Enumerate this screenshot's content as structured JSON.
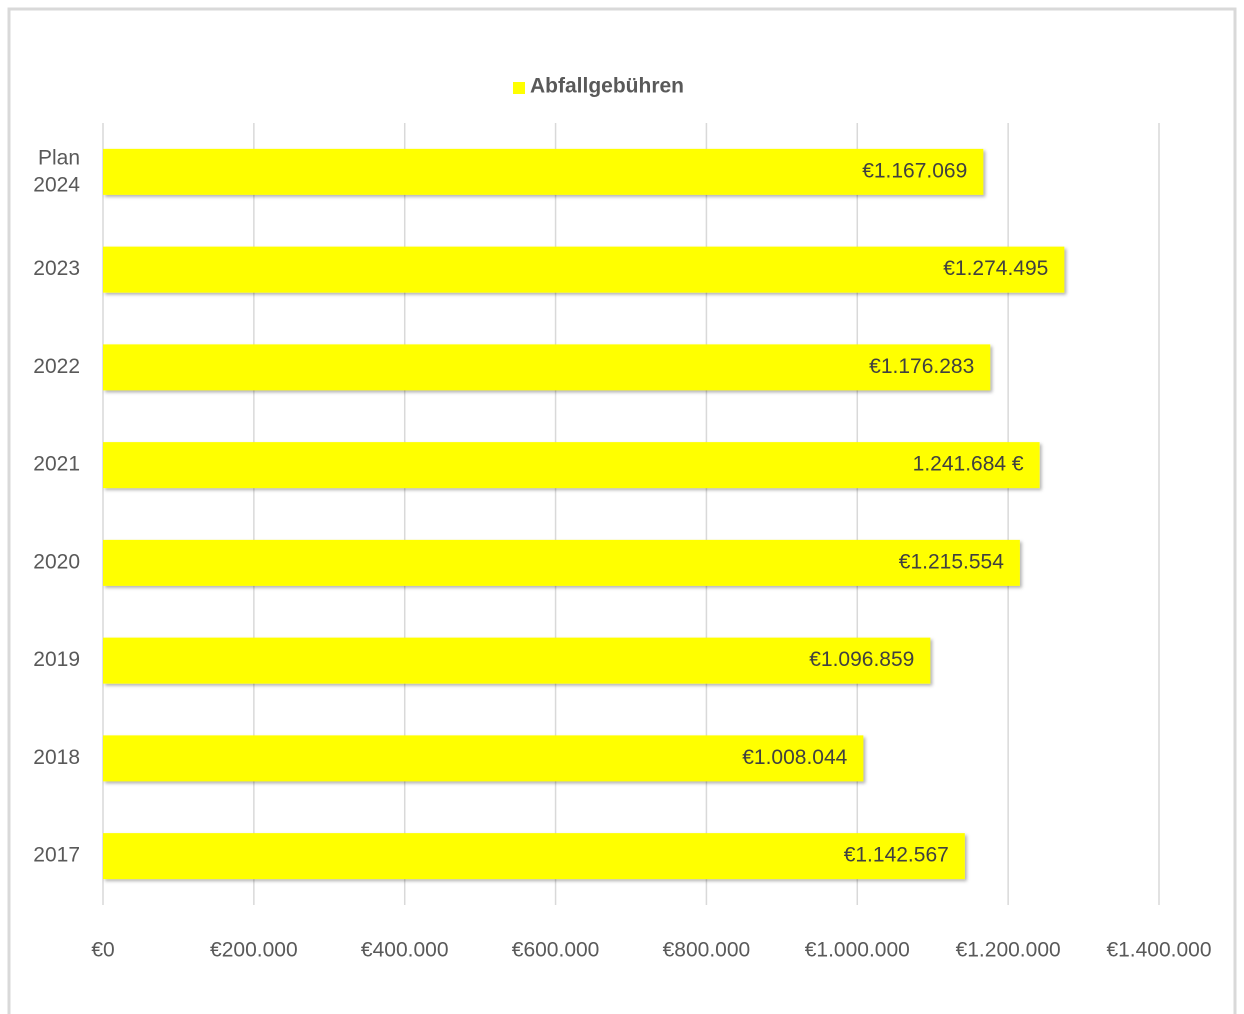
{
  "chart_data": {
    "type": "bar",
    "orientation": "horizontal",
    "categories": [
      "Plan 2024",
      "2023",
      "2022",
      "2021",
      "2020",
      "2019",
      "2018",
      "2017"
    ],
    "series": [
      {
        "name": "Abfallgebühren",
        "color": "#ffff00",
        "values": [
          1167069,
          1274495,
          1176283,
          1241684,
          1215554,
          1096859,
          1008044,
          1142567
        ],
        "value_labels": [
          "€1.167.069",
          "€1.274.495",
          "€1.176.283",
          "1.241.684 €",
          "€1.215.554",
          "€1.096.859",
          "€1.008.044",
          "€1.142.567"
        ]
      }
    ],
    "xlim": [
      0,
      1400000
    ],
    "xticks": [
      {
        "value": 0,
        "label": "€0"
      },
      {
        "value": 200000,
        "label": "€200.000"
      },
      {
        "value": 400000,
        "label": "€400.000"
      },
      {
        "value": 600000,
        "label": "€600.000"
      },
      {
        "value": 800000,
        "label": "€800.000"
      },
      {
        "value": 1000000,
        "label": "€1.000.000"
      },
      {
        "value": 1200000,
        "label": "€1.200.000"
      },
      {
        "value": 1400000,
        "label": "€1.400.000"
      }
    ],
    "grid": true,
    "legend": "top"
  }
}
